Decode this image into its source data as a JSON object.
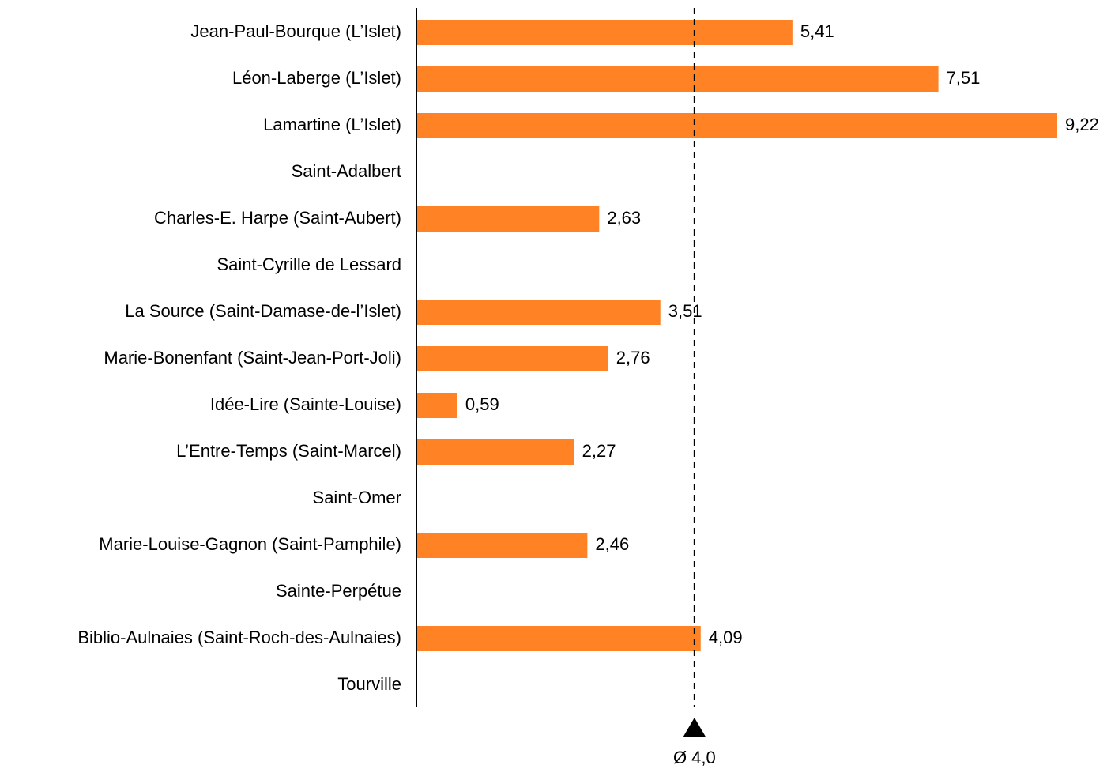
{
  "chart_data": {
    "type": "hbar",
    "categories": [
      "Jean-Paul-Bourque (L’Islet)",
      "Léon-Laberge (L’Islet)",
      "Lamartine (L’Islet)",
      "Saint-Adalbert",
      "Charles-E. Harpe (Saint-Aubert)",
      "Saint-Cyrille de Lessard",
      "La Source (Saint-Damase-de-l’Islet)",
      "Marie-Bonenfant (Saint-Jean-Port-Joli)",
      "Idée-Lire (Sainte-Louise)",
      "L’Entre-Temps (Saint-Marcel)",
      "Saint-Omer",
      "Marie-Louise-Gagnon (Saint-Pamphile)",
      "Sainte-Perpétue",
      "Biblio-Aulnaies (Saint-Roch-des-Aulnaies)",
      "Tourville"
    ],
    "values": [
      5.41,
      7.51,
      9.22,
      null,
      2.63,
      null,
      3.51,
      2.76,
      0.59,
      2.27,
      null,
      2.46,
      null,
      4.09,
      null
    ],
    "value_labels": [
      "5,41",
      "7,51",
      "9,22",
      null,
      "2,63",
      null,
      "3,51",
      "2,76",
      "0,59",
      "2,27",
      null,
      "2,46",
      null,
      "4,09",
      null
    ],
    "color": "#ff8225",
    "reference": {
      "value": 4.0,
      "label": "Ø 4,0"
    }
  }
}
